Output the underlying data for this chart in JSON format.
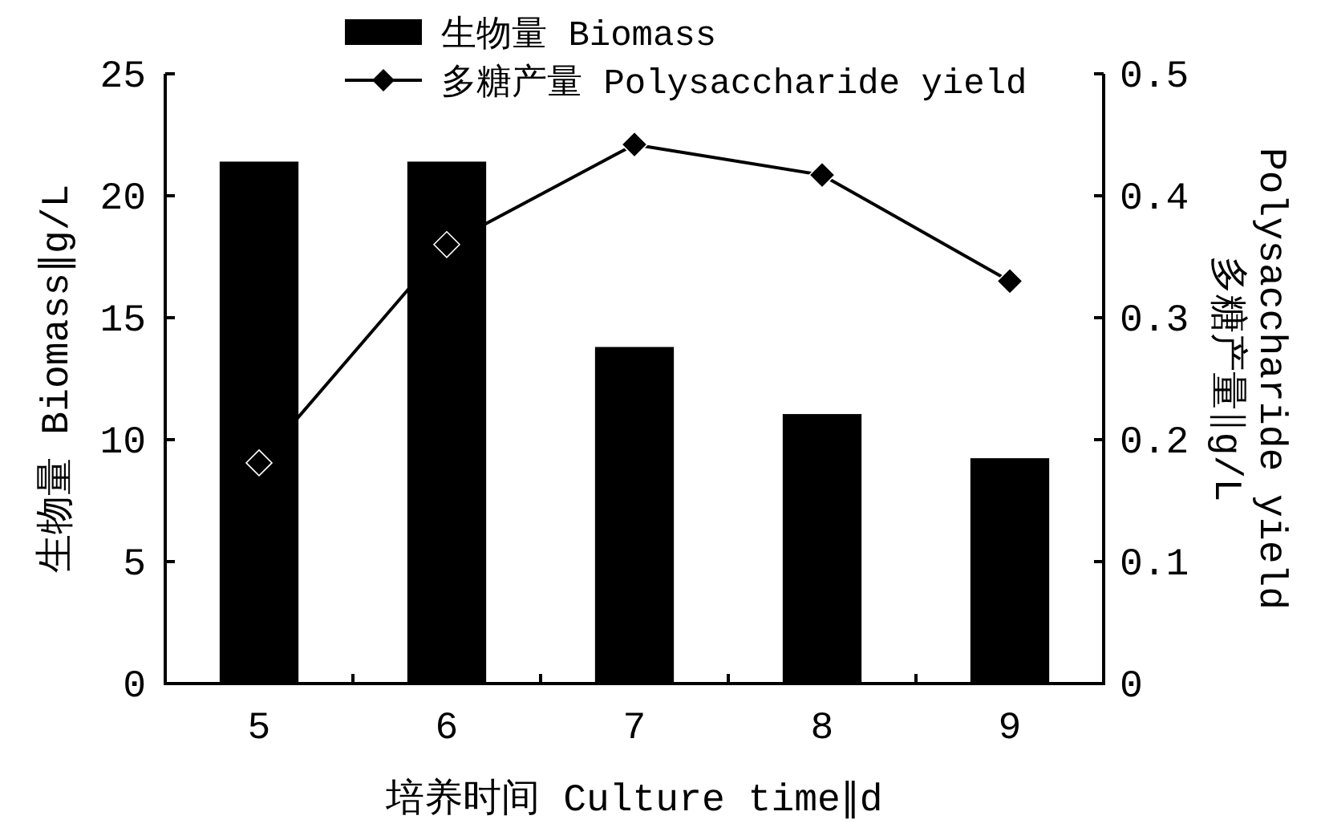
{
  "chart_data": {
    "type": "bar",
    "xlabel": "培养时间 Culture time∥d",
    "ylabel": "生物量 Biomass∥g/L",
    "y2label": "多糖产量∥g/L\nPolysaccharide yield",
    "categories": [
      "5",
      "6",
      "7",
      "8",
      "9"
    ],
    "series": [
      {
        "name": "生物量 Biomass",
        "color": "#000000",
        "values": [
          21.4,
          21.4,
          13.8,
          11.05,
          9.24
        ]
      },
      {
        "name": "多糖产量 Polysaccharide yield",
        "type": "line",
        "axis": "y2",
        "color": "#000000",
        "marker": "diamond",
        "values": [
          0.181,
          0.36,
          0.442,
          0.417,
          0.33
        ]
      }
    ],
    "ylim": [
      0,
      25
    ],
    "yticks": [
      0,
      5,
      10,
      15,
      20,
      25
    ],
    "y2lim": [
      0,
      0.5
    ],
    "y2ticks": [
      0,
      0.1,
      0.2,
      0.3,
      0.4,
      0.5
    ],
    "legend": "top",
    "grid": false
  }
}
